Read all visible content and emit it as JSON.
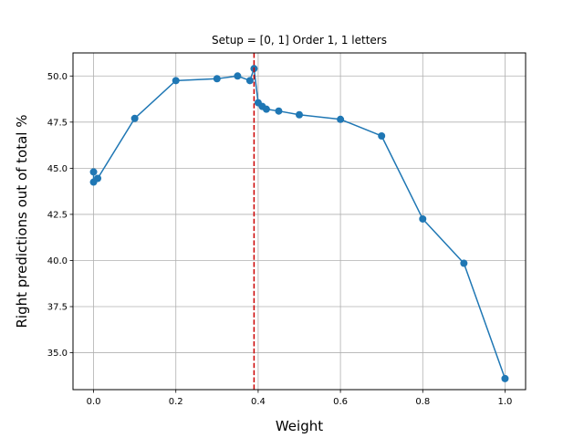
{
  "chart_data": {
    "type": "line",
    "title": "Setup = [0, 1] Order 1, 1 letters",
    "xlabel": "Weight",
    "ylabel": "Right predictions out of total %",
    "xlim": [
      -0.05,
      1.05
    ],
    "ylim": [
      33.0,
      51.25
    ],
    "xticks": [
      0.0,
      0.2,
      0.4,
      0.6,
      0.8,
      1.0
    ],
    "xtick_labels": [
      "0.0",
      "0.2",
      "0.4",
      "0.6",
      "0.8",
      "1.0"
    ],
    "yticks": [
      35.0,
      37.5,
      40.0,
      42.5,
      45.0,
      47.5,
      50.0
    ],
    "ytick_labels": [
      "35.0",
      "37.5",
      "40.0",
      "42.5",
      "45.0",
      "47.5",
      "50.0"
    ],
    "grid": true,
    "series": [
      {
        "color": "#1f77b4",
        "marker": "circle",
        "x": [
          0.0,
          0.0,
          0.01,
          0.1,
          0.2,
          0.3,
          0.35,
          0.38,
          0.39,
          0.4,
          0.41,
          0.42,
          0.45,
          0.5,
          0.6,
          0.7,
          0.8,
          0.9,
          1.0
        ],
        "y": [
          44.8,
          44.25,
          44.45,
          47.7,
          49.75,
          49.85,
          50.0,
          49.75,
          50.4,
          48.55,
          48.35,
          48.2,
          48.1,
          47.9,
          47.65,
          46.75,
          42.25,
          39.85,
          33.6
        ]
      }
    ],
    "reference_lines": [
      {
        "orientation": "vertical",
        "x": 0.39,
        "color": "#cc0000",
        "style": "dashed"
      }
    ]
  }
}
